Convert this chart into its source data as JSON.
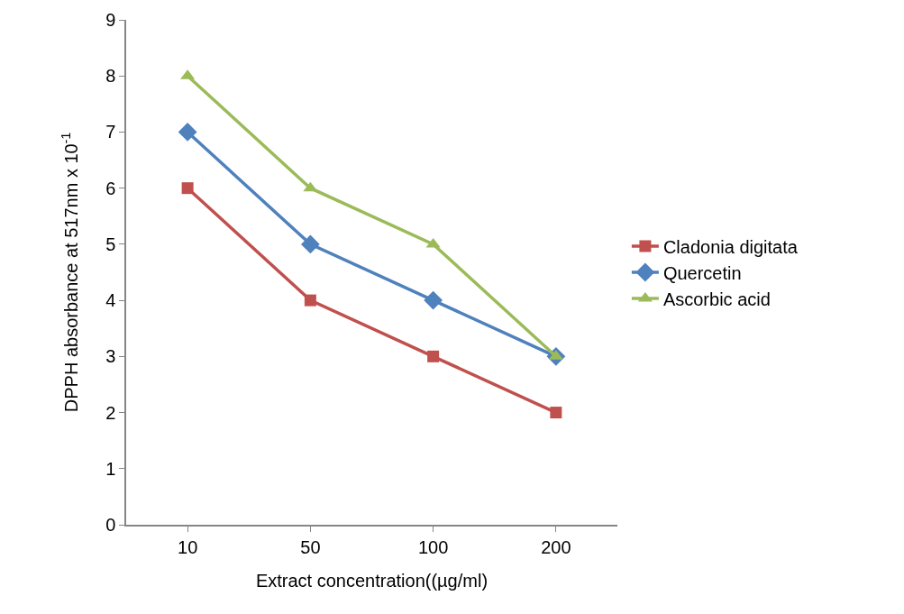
{
  "chart_data": {
    "type": "line",
    "xlabel": "Extract concentration((µg/ml)",
    "ylabel": "DPPH absorbance at 517nm x 10$^{-1}$",
    "categories": [
      "10",
      "50",
      "100",
      "200"
    ],
    "series": [
      {
        "name": "Cladonia digitata",
        "color": "#c0504d",
        "marker": "square",
        "values": [
          6,
          4,
          3,
          2
        ]
      },
      {
        "name": "Quercetin",
        "color": "#4f81bd",
        "marker": "diamond",
        "values": [
          7,
          5,
          4,
          3
        ]
      },
      {
        "name": "Ascorbic acid",
        "color": "#9bbb59",
        "marker": "triangle",
        "values": [
          8,
          6,
          5,
          3
        ]
      }
    ],
    "ylim": [
      0,
      9
    ],
    "yticks": [
      0,
      1,
      2,
      3,
      4,
      5,
      6,
      7,
      8,
      9
    ],
    "legend": "right",
    "line_style": "solid"
  }
}
